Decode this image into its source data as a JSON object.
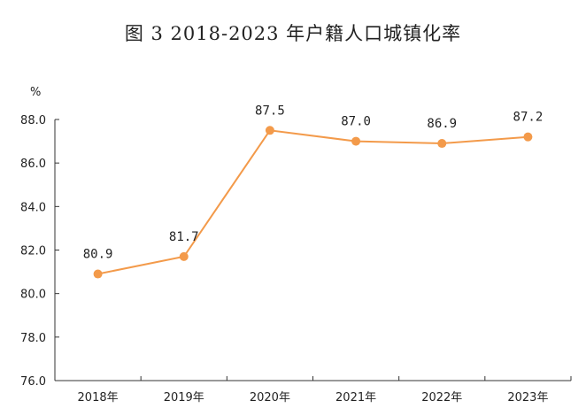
{
  "chart_data": {
    "type": "line",
    "title": "图 3   2018-2023 年户籍人口城镇化率",
    "ylabel": "%",
    "xlabel": "",
    "categories": [
      "2018年",
      "2019年",
      "2020年",
      "2021年",
      "2022年",
      "2023年"
    ],
    "series": [
      {
        "values": [
          80.9,
          81.7,
          87.5,
          87.0,
          86.9,
          87.2
        ]
      }
    ],
    "data_labels": [
      "80.9",
      "81.7",
      "87.5",
      "87.0",
      "86.9",
      "87.2"
    ],
    "ylim": [
      76.0,
      88.0
    ],
    "yticks": [
      "76.0",
      "78.0",
      "80.0",
      "82.0",
      "84.0",
      "86.0",
      "88.0"
    ],
    "ytick_values": [
      76,
      78,
      80,
      82,
      84,
      86,
      88
    ],
    "grid": false,
    "legend": "none",
    "colors": {
      "series": "#F39A4A",
      "axis": "#333333"
    }
  }
}
